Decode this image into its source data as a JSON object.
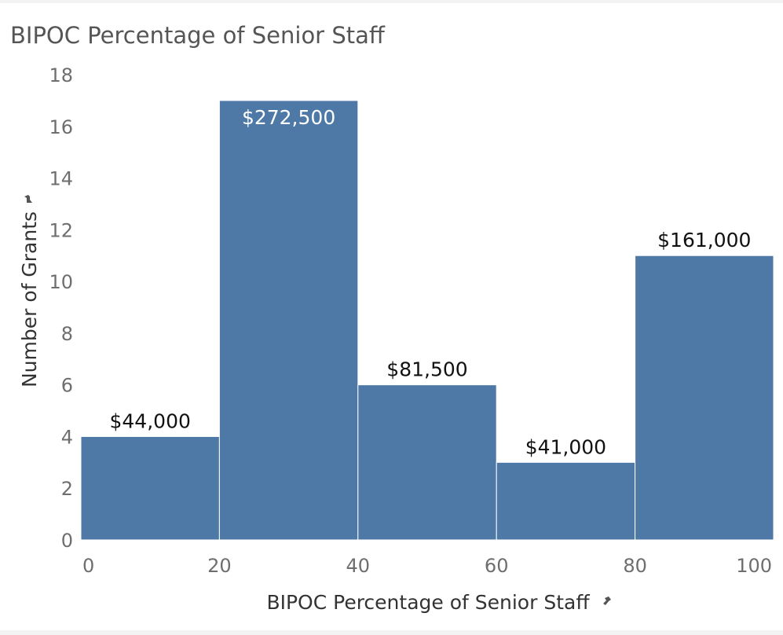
{
  "chart_data": {
    "type": "bar",
    "title": "BIPOC Percentage of Senior Staff",
    "xlabel": "BIPOC Percentage of Senior Staff",
    "ylabel": "Number of Grants",
    "bins": [
      {
        "x_start": 0,
        "x_end": 20,
        "count": 4,
        "label": "$44,000"
      },
      {
        "x_start": 20,
        "x_end": 40,
        "count": 17,
        "label": "$272,500"
      },
      {
        "x_start": 40,
        "x_end": 60,
        "count": 6,
        "label": "$81,500"
      },
      {
        "x_start": 60,
        "x_end": 80,
        "count": 3,
        "label": "$41,000"
      },
      {
        "x_start": 80,
        "x_end": 100,
        "count": 11,
        "label": "$161,000"
      }
    ],
    "x_ticks": [
      0,
      20,
      40,
      60,
      80,
      100
    ],
    "y_ticks": [
      0,
      2,
      4,
      6,
      8,
      10,
      12,
      14,
      16,
      18
    ],
    "xlim": [
      0,
      100
    ],
    "ylim": [
      0,
      18
    ],
    "grid": false,
    "bar_color": "#4e79a7",
    "label_color_outside": "#111111",
    "label_color_inside": "#ffffff"
  }
}
